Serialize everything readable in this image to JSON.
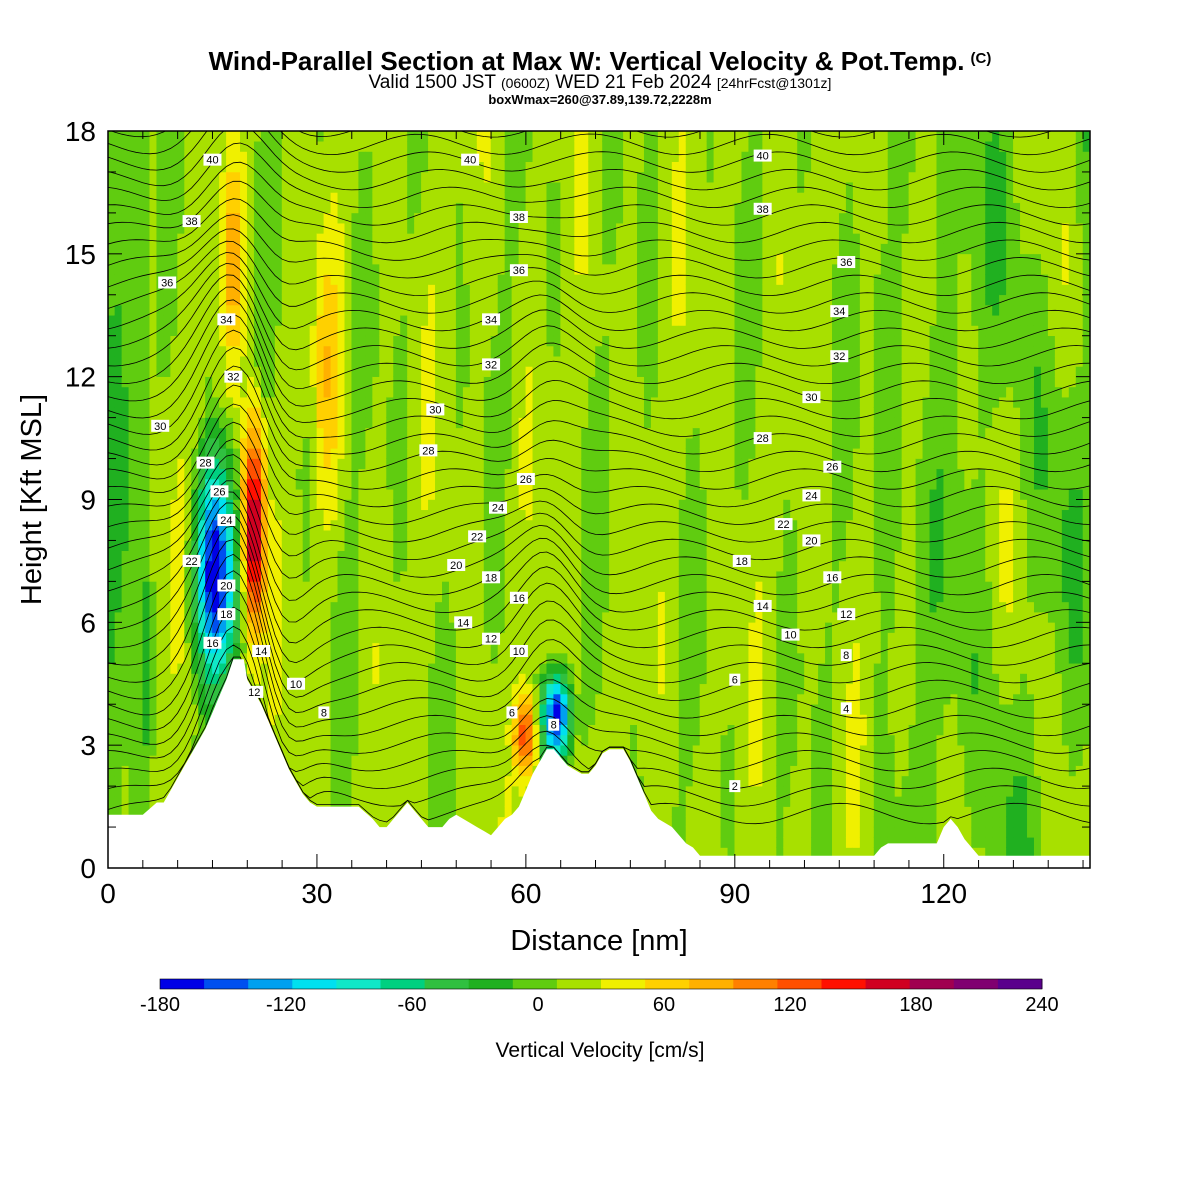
{
  "header": {
    "title": "Wind-Parallel Section at Max W: Vertical Velocity & Pot.Temp.",
    "title_mark": "(C)",
    "valid_prefix": "Valid 1500 JST",
    "valid_utc": "(0600Z)",
    "valid_date": "WED 21 Feb 2024",
    "forecast": "[24hrFcst@1301z]",
    "box_info": "boxWmax=260@37.89,139.72,2228m"
  },
  "chart_data": {
    "type": "heatmap",
    "xlabel": "Distance [nm]",
    "ylabel": "Height [Kft MSL]",
    "xlim": [
      0,
      141
    ],
    "ylim": [
      0,
      18
    ],
    "xticks": [
      0,
      30,
      60,
      90,
      120
    ],
    "yticks": [
      0,
      3,
      6,
      9,
      12,
      15,
      18
    ],
    "colorbar": {
      "label": "Vertical Velocity [cm/s]",
      "range": [
        -180,
        240
      ],
      "step": 20,
      "tick_values": [
        -180,
        -120,
        -60,
        0,
        60,
        120,
        180,
        240
      ],
      "colors": [
        "#0000e6",
        "#0050f0",
        "#00a0f0",
        "#00e0f0",
        "#10e8c8",
        "#00d080",
        "#30c040",
        "#20b020",
        "#60cc10",
        "#a8e000",
        "#f0f000",
        "#ffd000",
        "#ffb000",
        "#ff8000",
        "#ff5000",
        "#ff1000",
        "#d00020",
        "#a00050",
        "#800070",
        "#5a008c"
      ]
    },
    "terrain_profile": {
      "x": [
        0,
        5,
        7,
        8,
        9,
        10,
        11,
        12,
        13,
        14,
        15,
        16,
        17,
        18,
        19,
        19.5,
        20,
        21,
        22,
        23,
        24,
        25,
        26,
        27,
        28,
        29,
        30,
        33,
        36,
        38,
        39,
        40,
        41,
        42,
        43,
        44,
        45,
        46,
        47,
        48,
        49,
        50,
        51,
        52,
        53,
        54,
        55,
        56,
        57,
        58,
        59,
        60,
        61,
        62,
        63,
        64,
        65,
        66,
        67,
        68,
        69,
        70,
        71,
        72,
        73,
        74,
        75,
        76,
        77,
        78,
        79,
        80,
        81,
        82,
        83,
        84,
        85,
        90,
        100,
        110,
        111,
        112,
        113,
        114,
        115,
        116,
        117,
        118,
        119,
        120,
        121,
        122,
        123,
        124,
        125,
        126,
        127,
        128,
        130,
        135,
        141
      ],
      "z": [
        1.3,
        1.3,
        1.6,
        1.6,
        1.9,
        2.2,
        2.5,
        2.8,
        3.1,
        3.4,
        3.8,
        4.2,
        4.6,
        5.1,
        5.1,
        5.1,
        4.6,
        4.3,
        4.0,
        3.6,
        3.2,
        2.8,
        2.4,
        2.1,
        1.8,
        1.6,
        1.5,
        1.5,
        1.5,
        1.2,
        1.0,
        1.0,
        1.2,
        1.4,
        1.6,
        1.4,
        1.2,
        1.0,
        1.0,
        1.0,
        1.2,
        1.3,
        1.2,
        1.1,
        1.0,
        0.9,
        0.8,
        1.0,
        1.2,
        1.3,
        1.5,
        1.9,
        2.3,
        2.6,
        2.9,
        2.9,
        2.7,
        2.5,
        2.4,
        2.3,
        2.3,
        2.5,
        2.8,
        2.9,
        2.9,
        2.9,
        2.6,
        2.2,
        1.8,
        1.4,
        1.2,
        1.1,
        1.0,
        0.8,
        0.6,
        0.5,
        0.3,
        0.3,
        0.3,
        0.3,
        0.5,
        0.6,
        0.6,
        0.6,
        0.6,
        0.6,
        0.6,
        0.6,
        0.6,
        1.0,
        1.2,
        1.0,
        0.7,
        0.5,
        0.3,
        0.3,
        0.3,
        0.3,
        0.3,
        0.3,
        0.3
      ]
    },
    "vertical_velocity_features": [
      {
        "kind": "updraft",
        "x": [
          19,
          23
        ],
        "z": [
          5.0,
          11.5
        ],
        "peak_value": 170
      },
      {
        "kind": "updraft",
        "x": [
          16,
          20
        ],
        "z": [
          12.0,
          18.0
        ],
        "peak_value": 60
      },
      {
        "kind": "downdraft",
        "x": [
          12,
          19
        ],
        "z": [
          3.8,
          10.5
        ],
        "peak_value": -180
      },
      {
        "kind": "updraft",
        "x": [
          58,
          62
        ],
        "z": [
          2.0,
          4.5
        ],
        "peak_value": 110
      },
      {
        "kind": "downdraft",
        "x": [
          62,
          67
        ],
        "z": [
          2.4,
          5.0
        ],
        "peak_value": -180
      },
      {
        "kind": "updraft",
        "x": [
          29,
          34
        ],
        "z": [
          8.0,
          16.0
        ],
        "peak_value": 40
      }
    ],
    "theta_contours": {
      "units": "C",
      "interval": 1,
      "labeled_values": [
        2,
        4,
        6,
        8,
        10,
        12,
        14,
        16,
        18,
        20,
        22,
        24,
        26,
        28,
        30,
        32,
        34,
        36,
        38,
        40
      ],
      "labels": [
        {
          "text": "40",
          "x": 15,
          "z": 17.3
        },
        {
          "text": "38",
          "x": 12,
          "z": 15.8
        },
        {
          "text": "36",
          "x": 8.5,
          "z": 14.3
        },
        {
          "text": "34",
          "x": 17,
          "z": 13.4
        },
        {
          "text": "32",
          "x": 18,
          "z": 12.0
        },
        {
          "text": "30",
          "x": 7.5,
          "z": 10.8
        },
        {
          "text": "28",
          "x": 14,
          "z": 9.9
        },
        {
          "text": "26",
          "x": 16,
          "z": 9.2
        },
        {
          "text": "24",
          "x": 17,
          "z": 8.5
        },
        {
          "text": "22",
          "x": 12,
          "z": 7.5
        },
        {
          "text": "20",
          "x": 17,
          "z": 6.9
        },
        {
          "text": "18",
          "x": 17,
          "z": 6.2
        },
        {
          "text": "16",
          "x": 15,
          "z": 5.5
        },
        {
          "text": "14",
          "x": 22,
          "z": 5.3
        },
        {
          "text": "12",
          "x": 21,
          "z": 4.3
        },
        {
          "text": "10",
          "x": 27,
          "z": 4.5
        },
        {
          "text": "8",
          "x": 31,
          "z": 3.8
        },
        {
          "text": "40",
          "x": 52,
          "z": 17.3
        },
        {
          "text": "38",
          "x": 59,
          "z": 15.9
        },
        {
          "text": "36",
          "x": 59,
          "z": 14.6
        },
        {
          "text": "34",
          "x": 55,
          "z": 13.4
        },
        {
          "text": "32",
          "x": 55,
          "z": 12.3
        },
        {
          "text": "30",
          "x": 47,
          "z": 11.2
        },
        {
          "text": "28",
          "x": 46,
          "z": 10.2
        },
        {
          "text": "26",
          "x": 60,
          "z": 9.5
        },
        {
          "text": "24",
          "x": 56,
          "z": 8.8
        },
        {
          "text": "22",
          "x": 53,
          "z": 8.1
        },
        {
          "text": "20",
          "x": 50,
          "z": 7.4
        },
        {
          "text": "18",
          "x": 55,
          "z": 7.1
        },
        {
          "text": "16",
          "x": 59,
          "z": 6.6
        },
        {
          "text": "14",
          "x": 51,
          "z": 6.0
        },
        {
          "text": "12",
          "x": 55,
          "z": 5.6
        },
        {
          "text": "10",
          "x": 59,
          "z": 5.3
        },
        {
          "text": "6",
          "x": 58,
          "z": 3.8
        },
        {
          "text": "8",
          "x": 64,
          "z": 3.5
        },
        {
          "text": "40",
          "x": 94,
          "z": 17.4
        },
        {
          "text": "38",
          "x": 94,
          "z": 16.1
        },
        {
          "text": "36",
          "x": 106,
          "z": 14.8
        },
        {
          "text": "34",
          "x": 105,
          "z": 13.6
        },
        {
          "text": "32",
          "x": 105,
          "z": 12.5
        },
        {
          "text": "30",
          "x": 101,
          "z": 11.5
        },
        {
          "text": "28",
          "x": 94,
          "z": 10.5
        },
        {
          "text": "26",
          "x": 104,
          "z": 9.8
        },
        {
          "text": "24",
          "x": 101,
          "z": 9.1
        },
        {
          "text": "22",
          "x": 97,
          "z": 8.4
        },
        {
          "text": "20",
          "x": 101,
          "z": 8.0
        },
        {
          "text": "18",
          "x": 91,
          "z": 7.5
        },
        {
          "text": "16",
          "x": 104,
          "z": 7.1
        },
        {
          "text": "14",
          "x": 94,
          "z": 6.4
        },
        {
          "text": "12",
          "x": 106,
          "z": 6.2
        },
        {
          "text": "10",
          "x": 98,
          "z": 5.7
        },
        {
          "text": "8",
          "x": 106,
          "z": 5.2
        },
        {
          "text": "6",
          "x": 90,
          "z": 4.6
        },
        {
          "text": "4",
          "x": 106,
          "z": 3.9
        },
        {
          "text": "2",
          "x": 90,
          "z": 2.0
        }
      ]
    }
  }
}
